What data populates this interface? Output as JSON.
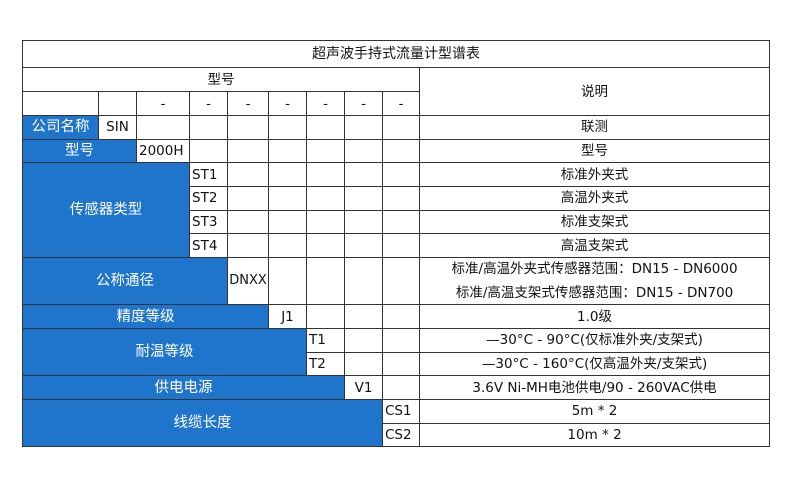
{
  "title": "超声波手持式流量计型谱表",
  "header": {
    "model": "型号",
    "desc": "说明",
    "dash": "-"
  },
  "rows": {
    "company": {
      "label": "公司名称",
      "code": "SIN",
      "desc": "联测"
    },
    "model": {
      "label": "型号",
      "code": "2000H",
      "desc": "型号"
    },
    "sensor": {
      "label": "传感器类型",
      "items": [
        {
          "code": "ST1",
          "desc": "标准外夹式"
        },
        {
          "code": "ST2",
          "desc": "高温外夹式"
        },
        {
          "code": "ST3",
          "desc": "标准支架式"
        },
        {
          "code": "ST4",
          "desc": "高温支架式"
        }
      ]
    },
    "diameter": {
      "label": "公称通径",
      "code": "DNXX",
      "desc": [
        "标准/高温外夹式传感器范围：DN15 - DN6000",
        "标准/高温支架式传感器范围：DN15 - DN700"
      ]
    },
    "accuracy": {
      "label": "精度等级",
      "code": "J1",
      "desc": "1.0级"
    },
    "temperature": {
      "label": "耐温等级",
      "items": [
        {
          "code": "T1",
          "desc": "—30°C - 90°C(仅标准外夹/支架式)"
        },
        {
          "code": "T2",
          "desc": "—30°C - 160°C(仅高温外夹/支架式)"
        }
      ]
    },
    "power": {
      "label": "供电电源",
      "code": "V1",
      "desc": "3.6V Ni-MH电池供电/90 - 260VAC供电"
    },
    "cable": {
      "label": "线缆长度",
      "items": [
        {
          "code": "CS1",
          "desc": "5m * 2"
        },
        {
          "code": "CS2",
          "desc": "10m * 2"
        }
      ]
    }
  },
  "colors": {
    "header_blue": "#1f75cc",
    "border": "#333333"
  }
}
